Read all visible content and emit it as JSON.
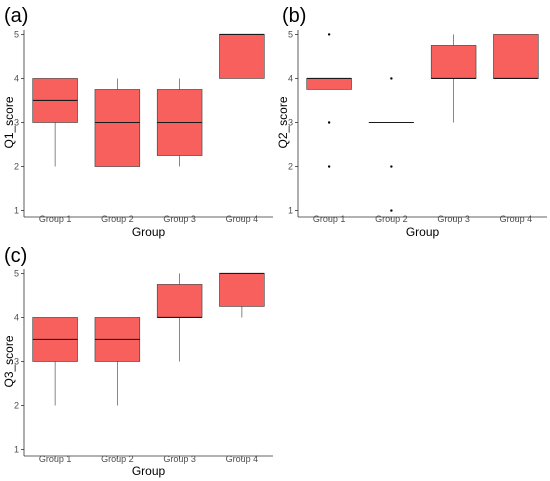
{
  "chart_data": [
    {
      "type": "box",
      "panel_label": "(a)",
      "xlabel": "Group",
      "ylabel": "Q1_score",
      "ylim": [
        0.9,
        5.1
      ],
      "y_ticks": [
        1,
        2,
        3,
        4,
        5
      ],
      "categories": [
        "Group 1",
        "Group 2",
        "Group 3",
        "Group 4"
      ],
      "color": "#f8605d",
      "boxes": [
        {
          "category": "Group 1",
          "whisker_low": 2,
          "q1": 3,
          "median": 3.5,
          "q3": 4,
          "whisker_high": 4,
          "outliers": []
        },
        {
          "category": "Group 2",
          "whisker_low": 2,
          "q1": 2,
          "median": 3,
          "q3": 3.75,
          "whisker_high": 4,
          "outliers": []
        },
        {
          "category": "Group 3",
          "whisker_low": 2,
          "q1": 2.25,
          "median": 3,
          "q3": 3.75,
          "whisker_high": 4,
          "outliers": []
        },
        {
          "category": "Group 4",
          "whisker_low": 4,
          "q1": 4,
          "median": 5,
          "q3": 5,
          "whisker_high": 5,
          "outliers": []
        }
      ]
    },
    {
      "type": "box",
      "panel_label": "(b)",
      "xlabel": "Group",
      "ylabel": "Q2_score",
      "ylim": [
        0.9,
        5.1
      ],
      "y_ticks": [
        1,
        2,
        3,
        4,
        5
      ],
      "categories": [
        "Group 1",
        "Group 2",
        "Group 3",
        "Group 4"
      ],
      "color": "#f8605d",
      "boxes": [
        {
          "category": "Group 1",
          "whisker_low": 3.75,
          "q1": 3.75,
          "median": 4,
          "q3": 4,
          "whisker_high": 4,
          "outliers": [
            2,
            3,
            5
          ]
        },
        {
          "category": "Group 2",
          "whisker_low": 3,
          "q1": 3,
          "median": 3,
          "q3": 3,
          "whisker_high": 3,
          "outliers": [
            1,
            2,
            4
          ]
        },
        {
          "category": "Group 3",
          "whisker_low": 3,
          "q1": 4,
          "median": 4,
          "q3": 4.75,
          "whisker_high": 5,
          "outliers": []
        },
        {
          "category": "Group 4",
          "whisker_low": 4,
          "q1": 4,
          "median": 4,
          "q3": 5,
          "whisker_high": 5,
          "outliers": []
        }
      ]
    },
    {
      "type": "box",
      "panel_label": "(c)",
      "xlabel": "Group",
      "ylabel": "Q3_score",
      "ylim": [
        0.9,
        5.1
      ],
      "y_ticks": [
        1,
        2,
        3,
        4,
        5
      ],
      "categories": [
        "Group 1",
        "Group 2",
        "Group 3",
        "Group 4"
      ],
      "color": "#f8605d",
      "boxes": [
        {
          "category": "Group 1",
          "whisker_low": 2,
          "q1": 3,
          "median": 3.5,
          "q3": 4,
          "whisker_high": 4,
          "outliers": []
        },
        {
          "category": "Group 2",
          "whisker_low": 2,
          "q1": 3,
          "median": 3.5,
          "q3": 4,
          "whisker_high": 4,
          "outliers": []
        },
        {
          "category": "Group 3",
          "whisker_low": 3,
          "q1": 4,
          "median": 4,
          "q3": 4.75,
          "whisker_high": 5,
          "outliers": []
        },
        {
          "category": "Group 4",
          "whisker_low": 4,
          "q1": 4.25,
          "median": 5,
          "q3": 5,
          "whisker_high": 5,
          "outliers": []
        }
      ]
    }
  ]
}
